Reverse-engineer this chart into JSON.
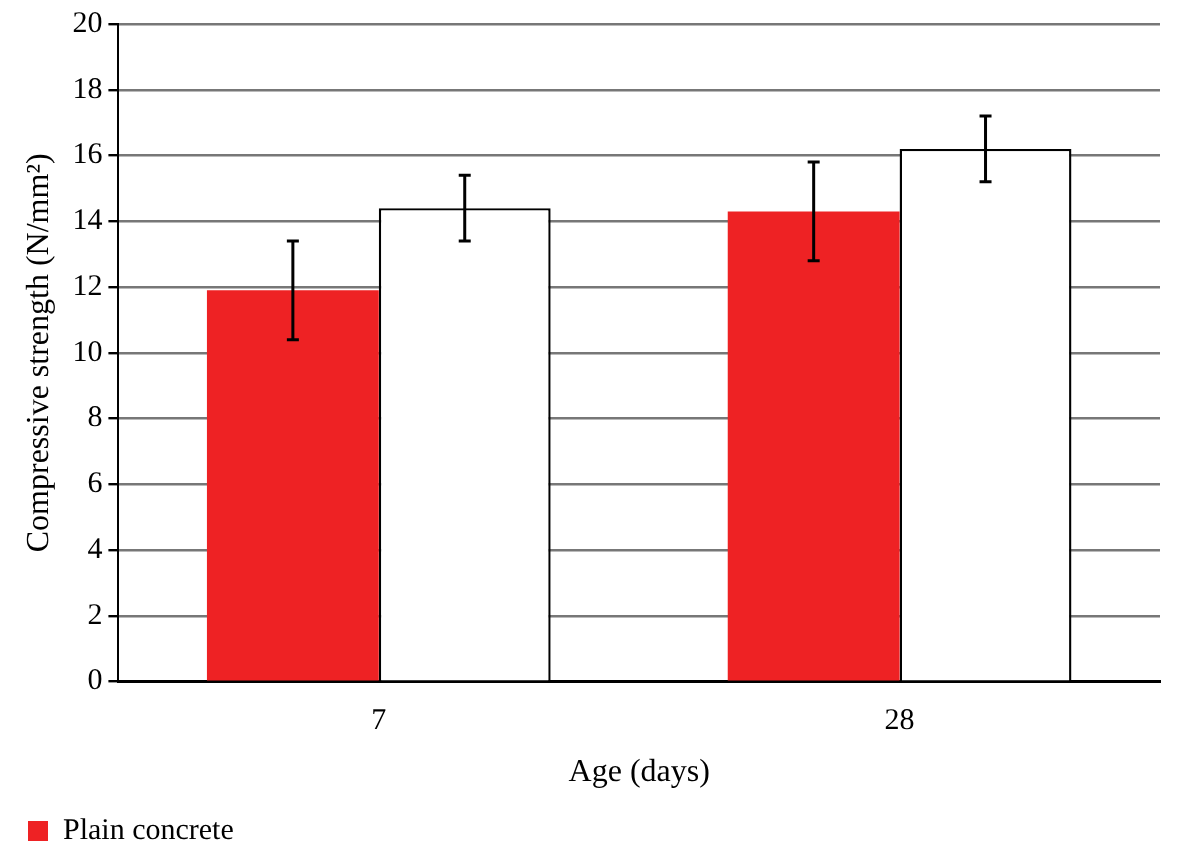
{
  "chart_data": {
    "type": "bar",
    "xlabel": "Age (days)",
    "ylabel": "Compressive strength (N/mm²)",
    "categories": [
      "7",
      "28"
    ],
    "series": [
      {
        "name": "Plain concrete",
        "color": "#ee2224",
        "values": [
          11.9,
          14.3
        ],
        "errors": [
          1.5,
          1.5
        ]
      },
      {
        "color": "#ffffff",
        "values": [
          14.4,
          16.2
        ],
        "errors": [
          1.0,
          1.0
        ]
      }
    ],
    "ylim": [
      0,
      20
    ],
    "yticks": [
      0,
      2,
      4,
      6,
      8,
      10,
      12,
      14,
      16,
      18,
      20
    ],
    "grid": "y",
    "legend": "bottom left"
  }
}
